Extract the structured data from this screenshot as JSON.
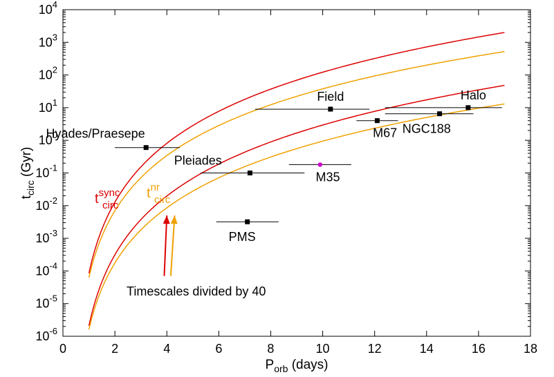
{
  "chart_data": {
    "type": "line",
    "xlabel": {
      "main": "P",
      "sub": "orb",
      "rest": " (days)"
    },
    "ylabel": {
      "main": "t",
      "sub": "circ",
      "rest": " (Gyr)"
    },
    "xlim": [
      0,
      18
    ],
    "ylim": [
      1e-06,
      10000.0
    ],
    "yscale": "log",
    "xticks": [
      0,
      2,
      4,
      6,
      8,
      10,
      12,
      14,
      16,
      18
    ],
    "yticks": [
      {
        "value": 1e-06,
        "base": "10",
        "exp": "-6"
      },
      {
        "value": 1e-05,
        "base": "10",
        "exp": "-5"
      },
      {
        "value": 0.0001,
        "base": "10",
        "exp": "-4"
      },
      {
        "value": 0.001,
        "base": "10",
        "exp": "-3"
      },
      {
        "value": 0.01,
        "base": "10",
        "exp": "-2"
      },
      {
        "value": 0.1,
        "base": "10",
        "exp": "-1"
      },
      {
        "value": 1.0,
        "base": "10",
        "exp": "0"
      },
      {
        "value": 10.0,
        "base": "10",
        "exp": "1"
      },
      {
        "value": 100.0,
        "base": "10",
        "exp": "2"
      },
      {
        "value": 1000.0,
        "base": "10",
        "exp": "3"
      },
      {
        "value": 10000.0,
        "base": "10",
        "exp": "4"
      }
    ],
    "grid": false,
    "curves": [
      {
        "id": "sync-full",
        "color": "#dd0000",
        "x": [
          1,
          17
        ],
        "y": [
          8.5e-05,
          2000
        ]
      },
      {
        "id": "nr-full",
        "color": "#f0a000",
        "x": [
          1,
          17
        ],
        "y": [
          6.3e-05,
          520
        ]
      },
      {
        "id": "sync-div40",
        "color": "#dd0000",
        "x": [
          1,
          17
        ],
        "y": [
          2.1e-06,
          48
        ]
      },
      {
        "id": "nr-div40",
        "color": "#f0a000",
        "x": [
          1,
          17
        ],
        "y": [
          1.6e-06,
          13
        ]
      }
    ],
    "clusters": [
      {
        "name": "Hyades/Praesepe",
        "x": 3.2,
        "y": 0.6,
        "xerr": [
          2.0,
          4.5
        ],
        "marker": "square",
        "color": "#000000"
      },
      {
        "name": "Pleiades",
        "x": 7.2,
        "y": 0.1,
        "xerr": [
          5.3,
          9.3
        ],
        "marker": "square",
        "color": "#000000"
      },
      {
        "name": "M35",
        "x": 9.9,
        "y": 0.18,
        "xerr": [
          8.7,
          11.1
        ],
        "marker": "circle",
        "color": "#cc00cc"
      },
      {
        "name": "PMS",
        "x": 7.1,
        "y": 0.0032,
        "xerr": [
          5.9,
          8.3
        ],
        "marker": "square",
        "color": "#000000"
      },
      {
        "name": "Field",
        "x": 10.3,
        "y": 9.0,
        "xerr": [
          7.4,
          11.8
        ],
        "marker": "square",
        "color": "#000000"
      },
      {
        "name": "M67",
        "x": 12.1,
        "y": 4.0,
        "xerr": [
          11.3,
          12.9
        ],
        "marker": "square",
        "color": "#000000"
      },
      {
        "name": "NGC188",
        "x": 14.5,
        "y": 6.5,
        "xerr": [
          12.4,
          15.8
        ],
        "marker": "square",
        "color": "#000000"
      },
      {
        "name": "Halo",
        "x": 15.6,
        "y": 10.0,
        "xerr": [
          12.4,
          16.9
        ],
        "marker": "square",
        "color": "#000000"
      }
    ],
    "annotations": {
      "tsync": {
        "main": "t",
        "sub": "circ",
        "sup": "sync",
        "color": "#dd0000"
      },
      "tnr": {
        "main": "t",
        "sub": "circ",
        "sup": "nr",
        "color": "#f0a000"
      },
      "divided": "Timescales divided by 40"
    },
    "arrows": [
      {
        "color": "#dd0000",
        "from": [
          3.9,
          7e-05
        ],
        "to": [
          4.0,
          0.005
        ]
      },
      {
        "color": "#f0a000",
        "from": [
          4.15,
          7e-05
        ],
        "to": [
          4.3,
          0.005
        ]
      }
    ]
  }
}
